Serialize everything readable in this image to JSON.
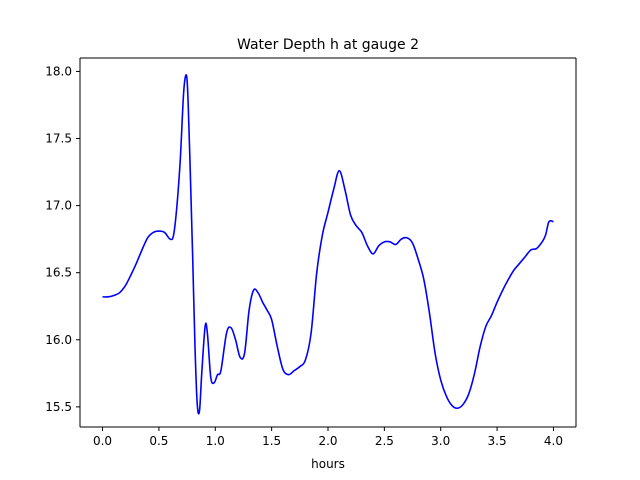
{
  "chart_data": {
    "type": "line",
    "title": "Water Depth h at gauge 2",
    "xlabel": "hours",
    "ylabel": "",
    "xlim": [
      -0.2,
      4.2
    ],
    "ylim": [
      15.35,
      18.1
    ],
    "xticks": [
      0.0,
      0.5,
      1.0,
      1.5,
      2.0,
      2.5,
      3.0,
      3.5,
      4.0
    ],
    "xtick_labels": [
      "0.0",
      "0.5",
      "1.0",
      "1.5",
      "2.0",
      "2.5",
      "3.0",
      "3.5",
      "4.0"
    ],
    "yticks": [
      15.5,
      16.0,
      16.5,
      17.0,
      17.5,
      18.0
    ],
    "ytick_labels": [
      "15.5",
      "16.0",
      "16.5",
      "17.0",
      "17.5",
      "18.0"
    ],
    "grid": false,
    "series": [
      {
        "color": "#0000ff",
        "x": [
          0.0,
          0.05,
          0.1,
          0.15,
          0.2,
          0.25,
          0.3,
          0.35,
          0.4,
          0.45,
          0.5,
          0.55,
          0.6,
          0.63,
          0.66,
          0.69,
          0.72,
          0.745,
          0.76,
          0.78,
          0.8,
          0.82,
          0.84,
          0.86,
          0.88,
          0.91,
          0.93,
          0.96,
          0.99,
          1.02,
          1.05,
          1.1,
          1.14,
          1.18,
          1.22,
          1.26,
          1.3,
          1.34,
          1.38,
          1.42,
          1.46,
          1.5,
          1.55,
          1.6,
          1.65,
          1.7,
          1.75,
          1.8,
          1.85,
          1.9,
          1.95,
          2.0,
          2.05,
          2.1,
          2.15,
          2.2,
          2.25,
          2.3,
          2.35,
          2.4,
          2.45,
          2.5,
          2.55,
          2.6,
          2.65,
          2.7,
          2.75,
          2.8,
          2.85,
          2.9,
          2.95,
          3.0,
          3.05,
          3.1,
          3.15,
          3.2,
          3.25,
          3.3,
          3.35,
          3.4,
          3.45,
          3.5,
          3.55,
          3.6,
          3.65,
          3.7,
          3.75,
          3.8,
          3.85,
          3.9,
          3.93,
          3.96,
          4.0
        ],
        "y": [
          16.32,
          16.32,
          16.33,
          16.35,
          16.4,
          16.48,
          16.57,
          16.67,
          16.76,
          16.8,
          16.81,
          16.8,
          16.75,
          16.78,
          17.0,
          17.35,
          17.85,
          17.97,
          17.75,
          17.2,
          16.6,
          15.95,
          15.52,
          15.47,
          15.75,
          16.1,
          16.05,
          15.72,
          15.68,
          15.74,
          15.77,
          16.05,
          16.09,
          16.0,
          15.87,
          15.9,
          16.22,
          16.37,
          16.35,
          16.28,
          16.22,
          16.15,
          15.95,
          15.78,
          15.74,
          15.77,
          15.8,
          15.85,
          16.05,
          16.5,
          16.78,
          16.95,
          17.12,
          17.26,
          17.12,
          16.93,
          16.85,
          16.8,
          16.7,
          16.64,
          16.7,
          16.73,
          16.73,
          16.71,
          16.75,
          16.76,
          16.72,
          16.6,
          16.45,
          16.2,
          15.9,
          15.7,
          15.58,
          15.51,
          15.49,
          15.52,
          15.6,
          15.75,
          15.95,
          16.1,
          16.18,
          16.28,
          16.37,
          16.45,
          16.52,
          16.57,
          16.62,
          16.67,
          16.68,
          16.73,
          16.78,
          16.88,
          16.88
        ]
      }
    ]
  }
}
